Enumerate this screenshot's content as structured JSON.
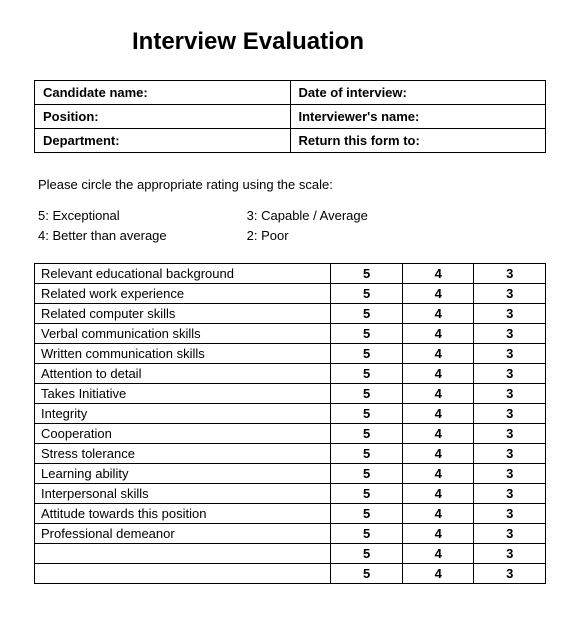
{
  "title": "Interview Evaluation",
  "info_fields": {
    "candidate_name": "Candidate name:",
    "date_of_interview": "Date of interview:",
    "position": "Position:",
    "interviewers_name": "Interviewer's name:",
    "department": "Department:",
    "return_to": "Return this form to:"
  },
  "instructions": "Please circle the appropriate rating using the scale:",
  "scale_left": {
    "line1": "5: Exceptional",
    "line2": "4: Better than average"
  },
  "scale_right": {
    "line1": "3: Capable / Average",
    "line2": "2: Poor"
  },
  "rating_columns": [
    "5",
    "4",
    "3"
  ],
  "criteria": [
    "Relevant educational background",
    "Related work experience",
    "Related computer skills",
    "Verbal communication skills",
    "Written communication skills",
    "Attention to detail",
    "Takes Initiative",
    "Integrity",
    "Cooperation",
    "Stress tolerance",
    "Learning ability",
    "Interpersonal skills",
    "Attitude towards this position",
    "Professional demeanor",
    "",
    ""
  ],
  "style": {
    "background_color": "#ffffff",
    "border_color": "#000000",
    "text_color": "#000000",
    "title_fontsize": 24,
    "body_fontsize": 13,
    "font_family": "Arial"
  }
}
